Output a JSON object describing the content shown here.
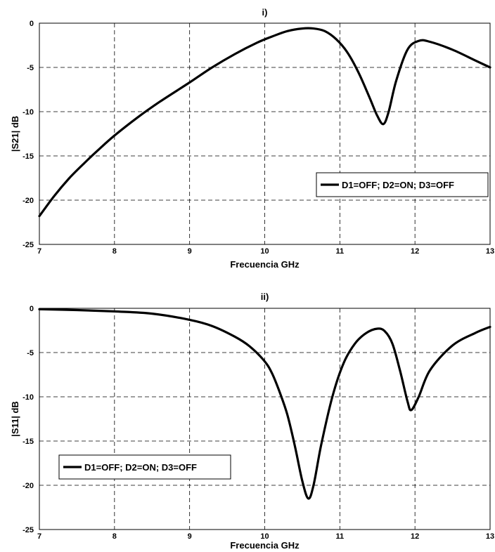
{
  "chart_data": [
    {
      "type": "line",
      "title": "i)",
      "xlabel": "Frecuencia GHz",
      "ylabel": "|S21| dB",
      "xlim": [
        7,
        13
      ],
      "ylim": [
        -25,
        0
      ],
      "xticks": [
        "7",
        "8",
        "9",
        "10",
        "11",
        "12",
        "13"
      ],
      "yticks": [
        "0",
        "-5",
        "-10",
        "-15",
        "-20",
        "-25"
      ],
      "grid": true,
      "legend_position": "right",
      "series": [
        {
          "name": "D1=OFF; D2=ON; D3=OFF",
          "x": [
            7.0,
            7.2,
            7.4,
            7.6,
            7.8,
            8.0,
            8.3,
            8.6,
            9.0,
            9.3,
            9.6,
            9.9,
            10.1,
            10.3,
            10.5,
            10.65,
            10.8,
            10.95,
            11.1,
            11.25,
            11.4,
            11.5,
            11.58,
            11.65,
            11.75,
            11.9,
            12.05,
            12.2,
            12.5,
            12.8,
            13.0
          ],
          "y": [
            -21.8,
            -19.5,
            -17.5,
            -15.8,
            -14.2,
            -12.7,
            -10.7,
            -8.9,
            -6.7,
            -5.0,
            -3.5,
            -2.2,
            -1.5,
            -0.9,
            -0.6,
            -0.6,
            -0.9,
            -1.8,
            -3.3,
            -5.6,
            -8.5,
            -10.5,
            -11.4,
            -10.0,
            -6.5,
            -3.0,
            -2.0,
            -2.1,
            -3.0,
            -4.2,
            -5.0
          ]
        }
      ]
    },
    {
      "type": "line",
      "title": "ii)",
      "xlabel": "Frecuencia GHz",
      "ylabel": "|S11| dB",
      "xlim": [
        7,
        13
      ],
      "ylim": [
        -25,
        0
      ],
      "xticks": [
        "7",
        "8",
        "9",
        "10",
        "11",
        "12",
        "13"
      ],
      "yticks": [
        "0",
        "-5",
        "-10",
        "-15",
        "-20",
        "-25"
      ],
      "grid": true,
      "legend_position": "left",
      "series": [
        {
          "name": "D1=OFF; D2=ON; D3=OFF",
          "x": [
            7.0,
            7.5,
            8.0,
            8.5,
            9.0,
            9.3,
            9.6,
            9.8,
            10.0,
            10.1,
            10.2,
            10.3,
            10.4,
            10.5,
            10.58,
            10.65,
            10.75,
            10.9,
            11.05,
            11.2,
            11.35,
            11.5,
            11.6,
            11.7,
            11.8,
            11.9,
            11.95,
            12.05,
            12.2,
            12.5,
            12.8,
            13.0
          ],
          "y": [
            -0.1,
            -0.2,
            -0.35,
            -0.6,
            -1.3,
            -2.0,
            -3.2,
            -4.3,
            -6.0,
            -7.4,
            -9.5,
            -12.0,
            -15.5,
            -19.5,
            -21.5,
            -20.0,
            -15.5,
            -10.0,
            -6.2,
            -4.0,
            -2.8,
            -2.3,
            -2.6,
            -4.0,
            -7.0,
            -10.5,
            -11.5,
            -10.0,
            -7.0,
            -4.2,
            -2.8,
            -2.1
          ]
        }
      ]
    }
  ]
}
